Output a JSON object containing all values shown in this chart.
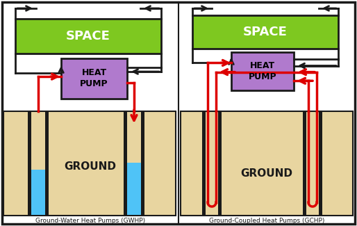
{
  "fig_width": 5.14,
  "fig_height": 3.25,
  "dpi": 100,
  "bg_color": "#ffffff",
  "border_color": "#1a1a1a",
  "ground_color": "#e8d5a0",
  "space_color": "#7ec820",
  "heat_pump_color": "#b07acd",
  "water_color": "#4fc3f7",
  "red_color": "#dd0000",
  "black_color": "#1a1a1a",
  "label_left": "Ground-Water Heat Pumps (GWHP)",
  "label_right": "Ground-Coupled Heat Pumps (GCHP)",
  "space_text": "SPACE",
  "heat_pump_text": "HEAT\nPUMP",
  "ground_text": "GROUND"
}
